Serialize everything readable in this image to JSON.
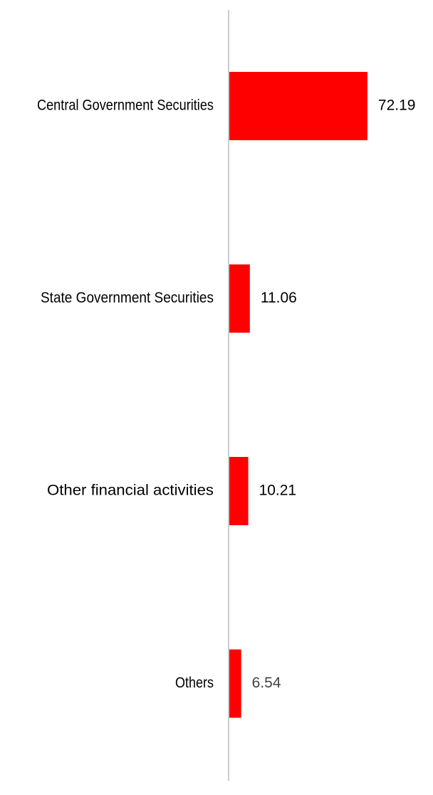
{
  "chart_data": {
    "type": "bar",
    "orientation": "horizontal",
    "categories": [
      "Central Government Securities",
      "State Government Securities",
      "Other financial activities",
      "Others"
    ],
    "values": [
      72.19,
      11.06,
      10.21,
      6.54
    ],
    "value_labels": [
      "72.19",
      "11.06",
      "10.21",
      "6.54"
    ],
    "title": "",
    "xlabel": "",
    "ylabel": "",
    "xlim": [
      0,
      100
    ],
    "grid": false,
    "legend": "none",
    "colors": {
      "bar": "#ff0000",
      "axis": "#cccccc",
      "label": "#000000",
      "value_label": "#000000",
      "value_label_last": "#444444"
    }
  }
}
